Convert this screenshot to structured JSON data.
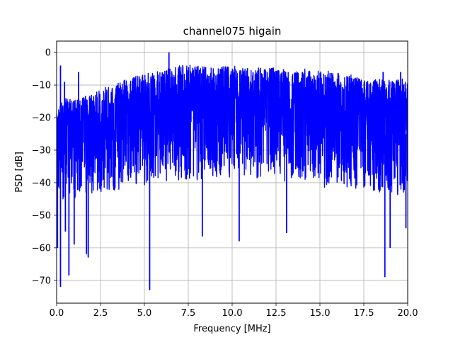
{
  "chart_data": {
    "type": "line",
    "title": "channel075 higain",
    "xlabel": "Frequency [MHz]",
    "ylabel": "PSD [dB]",
    "xlim": [
      0,
      20
    ],
    "ylim": [
      -77,
      3.5
    ],
    "xticks": [
      0,
      2.5,
      5,
      7.5,
      10,
      12.5,
      15,
      17.5,
      20
    ],
    "xtick_labels": [
      "0.0",
      "2.5",
      "5.0",
      "7.5",
      "10.0",
      "12.5",
      "15.0",
      "17.5",
      "20.0"
    ],
    "yticks": [
      0,
      -10,
      -20,
      -30,
      -40,
      -50,
      -60,
      -70
    ],
    "ytick_labels": [
      "0",
      "−10",
      "−20",
      "−30",
      "−40",
      "−50",
      "−60",
      "−70"
    ],
    "grid": true,
    "series": [
      {
        "color": "#0000ff",
        "envelope": {
          "x": [
            0,
            0.5,
            1,
            1.5,
            2,
            2.5,
            3,
            3.5,
            4,
            4.5,
            5,
            5.5,
            6,
            6.5,
            7,
            7.5,
            8,
            8.5,
            9,
            9.5,
            10,
            10.5,
            11,
            11.5,
            12,
            12.5,
            13,
            13.5,
            14,
            14.5,
            15,
            15.5,
            16,
            16.5,
            17,
            17.5,
            18,
            18.5,
            19,
            19.5,
            20
          ],
          "upper": [
            -17,
            -14,
            -14,
            -13,
            -12,
            -11,
            -10,
            -9,
            -8,
            -7,
            -6.5,
            -6,
            -5,
            -4.5,
            -4,
            -3.5,
            -4,
            -4,
            -4,
            -4,
            -4,
            -4,
            -4,
            -4.5,
            -4.5,
            -4.5,
            -5,
            -5,
            -5,
            -5,
            -5,
            -5.5,
            -6,
            -6.5,
            -7,
            -7.5,
            -8,
            -8,
            -8,
            -8,
            -8
          ],
          "lower": [
            -45,
            -44,
            -44,
            -43,
            -42,
            -42,
            -42,
            -41,
            -40,
            -40,
            -40,
            -39,
            -39,
            -39,
            -39,
            -39,
            -39,
            -38,
            -38,
            -38,
            -38,
            -38,
            -38,
            -38,
            -38,
            -38,
            -39,
            -39,
            -39,
            -39,
            -40,
            -40,
            -40,
            -40,
            -41,
            -41,
            -42,
            -42,
            -43,
            -43,
            -42
          ]
        },
        "peaks": [
          {
            "x": 0.22,
            "y": -4
          },
          {
            "x": 0.45,
            "y": -9
          },
          {
            "x": 1.25,
            "y": -6
          },
          {
            "x": 6.4,
            "y": 0
          },
          {
            "x": 18.6,
            "y": -6
          },
          {
            "x": 19.6,
            "y": -6
          }
        ],
        "dips": [
          {
            "x": 0.05,
            "y": -60
          },
          {
            "x": 0.22,
            "y": -72
          },
          {
            "x": 0.5,
            "y": -55
          },
          {
            "x": 0.7,
            "y": -68.5
          },
          {
            "x": 1.0,
            "y": -59
          },
          {
            "x": 1.7,
            "y": -62
          },
          {
            "x": 1.8,
            "y": -63
          },
          {
            "x": 5.3,
            "y": -73
          },
          {
            "x": 8.3,
            "y": -56.5
          },
          {
            "x": 10.4,
            "y": -58
          },
          {
            "x": 13.1,
            "y": -55.5
          },
          {
            "x": 18.7,
            "y": -69
          },
          {
            "x": 19.0,
            "y": -60
          },
          {
            "x": 19.9,
            "y": -54
          }
        ]
      }
    ]
  }
}
